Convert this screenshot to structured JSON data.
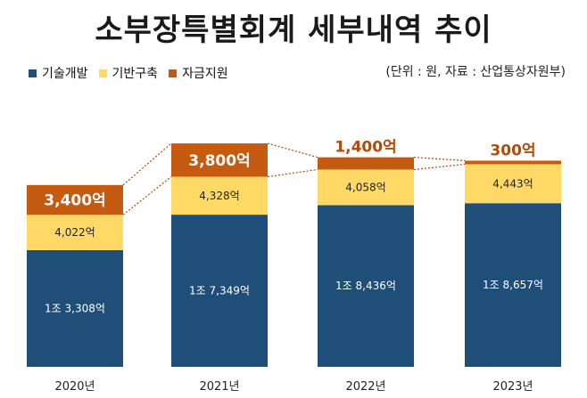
{
  "title": "소부장특별회계 세부내역 추이",
  "source_note": "(단위 : 원, 자료 : 산업통상자원부)",
  "legend": [
    {
      "label": "기술개발",
      "color": "#1f4e79"
    },
    {
      "label": "기반구축",
      "color": "#ffd966"
    },
    {
      "label": "자금지원",
      "color": "#c55a11"
    }
  ],
  "chart_data": {
    "type": "bar",
    "stacked": true,
    "title": "소부장특별회계 세부내역 추이",
    "unit": "억 원",
    "categories": [
      "2020년",
      "2021년",
      "2022년",
      "2023년"
    ],
    "series": [
      {
        "name": "기술개발",
        "color": "#1f4e79",
        "values": [
          13308,
          17349,
          18436,
          18657
        ],
        "labels": [
          "1조 3,308억",
          "1조 7,349억",
          "1조 8,436억",
          "1조 8,657억"
        ]
      },
      {
        "name": "기반구축",
        "color": "#ffd966",
        "values": [
          4022,
          4328,
          4058,
          4443
        ],
        "labels": [
          "4,022억",
          "4,328억",
          "4,058억",
          "4,443억"
        ]
      },
      {
        "name": "자금지원",
        "color": "#c55a11",
        "values": [
          3400,
          3800,
          1400,
          300
        ],
        "labels": [
          "3,400억",
          "3,800억",
          "1,400억",
          "300억"
        ]
      }
    ],
    "xlabel": "",
    "ylabel": "",
    "grid": false,
    "connector_lines": "dotted between 자금지원 segments",
    "legend_position": "top-left"
  }
}
